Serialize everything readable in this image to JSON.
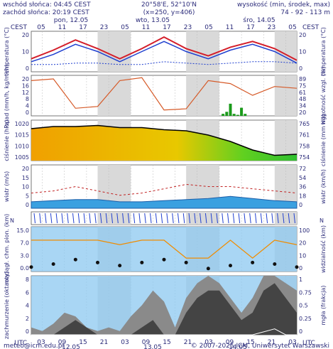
{
  "header": {
    "sunrise": "wschód słońca: 04:45 CEST",
    "sunset": "zachód słońca: 20:19 CEST",
    "coords": "20°58'E, 52°10'N",
    "grid": "(x=250,  y=406)",
    "elev_label": "wysokość (min, środek, max)",
    "elev_value": "74 - 92 - 113 m"
  },
  "timezone_label": "CEST",
  "bottom_timezone_label": "UTC",
  "top_days": [
    "pon, 12.05",
    "wto, 13.05",
    "śro, 14.05"
  ],
  "top_hours": [
    "05",
    "11",
    "17",
    "23",
    "05",
    "11",
    "17",
    "23",
    "05",
    "11",
    "17",
    "23",
    "05"
  ],
  "bottom_hours": [
    "03",
    "09",
    "15",
    "21",
    "03",
    "09",
    "15",
    "21",
    "03",
    "09",
    "15",
    "21",
    "03"
  ],
  "bottom_days": [
    "12.05",
    "13.05",
    "14.05"
  ],
  "footer": {
    "email": "meteo@icm.edu.pl",
    "copyright": "© 2007-2025 ICM, Uniwersytet Warszawski"
  },
  "colors": {
    "axis_text": "#2b2b7a",
    "night_band": "#d9d9d9",
    "temp_red": "#d41e2a",
    "temp_blue": "#1f3fcf",
    "humidity": "#d65a28",
    "precip": "#1a9a1a",
    "cloud_dark": "#444444",
    "sky_blue": "#8cc8f0",
    "visibility": "#f08c00"
  },
  "chart_data": [
    {
      "type": "line",
      "panel": "temperature",
      "ylabel_left": "temperatura (°C)",
      "ylabel_right": "temperatura (°C)",
      "yticks": [
        "20",
        "10",
        "0"
      ],
      "ylim": [
        -2,
        26
      ],
      "x_hours": [
        0,
        6,
        12,
        18,
        24,
        30,
        36,
        42,
        48,
        54,
        60,
        66,
        72
      ],
      "series": [
        {
          "values": [
            7,
            13,
            20,
            14,
            7,
            14,
            22,
            14,
            9,
            15,
            19,
            14,
            6
          ]
        },
        {
          "values": [
            5,
            10,
            17,
            12,
            5,
            12,
            19,
            12,
            7,
            13,
            17,
            12,
            4
          ]
        },
        {
          "values": [
            3,
            3,
            4,
            4,
            3,
            3,
            5,
            4,
            3,
            4,
            5,
            5,
            4
          ]
        }
      ]
    },
    {
      "type": "bar",
      "panel": "precipitation_humidity",
      "ylabel_left": "opad (mm/h, kg/m²/h)",
      "ylabel_right": "wilgotność wzgl. (%)",
      "yticks_left": [
        "20",
        "16",
        "12",
        "8",
        "4",
        "0"
      ],
      "yticks_right": [
        "89",
        "75",
        "61",
        "48",
        "34",
        "20"
      ],
      "ylim": [
        0,
        20
      ],
      "ylim_right": [
        20,
        89
      ],
      "humidity_x_hours": [
        0,
        6,
        12,
        18,
        24,
        30,
        36,
        42,
        48,
        54,
        60,
        66,
        72
      ],
      "humidity": [
        80,
        83,
        33,
        36,
        80,
        85,
        30,
        32,
        80,
        75,
        55,
        70,
        67
      ],
      "precip_x_hours": [
        52,
        53,
        54,
        55,
        56,
        57,
        58
      ],
      "precip": [
        1,
        2,
        6,
        1,
        0.5,
        4,
        1
      ]
    },
    {
      "type": "area",
      "panel": "pressure",
      "ylabel_left": "ciśnienie (hPa)",
      "ylabel_right": "ciśnienie (mm Hg)",
      "yticks_left": [
        "1020",
        "1015",
        "1010",
        "1005"
      ],
      "yticks_right": [
        "765",
        "761",
        "758",
        "754"
      ],
      "ylim": [
        1003,
        1022
      ],
      "x_hours": [
        0,
        6,
        12,
        18,
        24,
        30,
        36,
        42,
        48,
        54,
        60,
        66,
        72
      ],
      "values": [
        1018,
        1019,
        1019,
        1019.5,
        1018.5,
        1018.5,
        1017.5,
        1017,
        1015,
        1012,
        1008,
        1005.5,
        1006
      ]
    },
    {
      "type": "line",
      "panel": "wind",
      "ylabel_left": "wiatr (m/s)",
      "ylabel_right": "wiatr (km/h)",
      "yticks_left": [
        "20",
        "15",
        "10",
        "5",
        "0"
      ],
      "yticks_right": [
        "72",
        "54",
        "36",
        "18",
        "0"
      ],
      "ylim": [
        0,
        20
      ],
      "x_hours": [
        0,
        6,
        12,
        18,
        24,
        30,
        36,
        42,
        48,
        54,
        60,
        66,
        72
      ],
      "mean_speed": [
        3,
        3.5,
        4,
        4,
        3,
        3,
        3.5,
        4,
        4.5,
        5.5,
        4.5,
        3.5,
        3
      ],
      "gusts": [
        7,
        8,
        10,
        8,
        6,
        7,
        9,
        11,
        10,
        10,
        9,
        8,
        7
      ]
    },
    {
      "type": "scatter",
      "panel": "cloud_base_visibility",
      "ylabel_left": "rozciągł. chm. pion. (km)",
      "ylabel_right": "widzialność (km)",
      "yticks_left": [
        "15.0",
        "7.0",
        "3.0",
        "0.0"
      ],
      "yticks_right": [
        "100",
        "20",
        "10",
        "0"
      ],
      "x_hours": [
        0,
        6,
        12,
        18,
        24,
        30,
        36,
        42,
        48,
        54,
        60,
        66,
        72
      ],
      "visibility": [
        70,
        70,
        70,
        70,
        60,
        70,
        70,
        30,
        30,
        70,
        30,
        70,
        60
      ],
      "cloud_base": [
        1.5,
        2.5,
        4,
        3,
        2,
        3,
        4,
        3,
        1,
        2,
        3,
        2.5,
        1.5
      ]
    },
    {
      "type": "area",
      "panel": "cloud_cover_fog",
      "ylabel_left": "zachmurzenie (oktanty)",
      "ylabel_right": "mgła (frakcja)",
      "yticks_left": [
        "8",
        "6",
        "4",
        "2",
        "0"
      ],
      "yticks_right": [
        "1",
        "0.75",
        "0.5",
        "0.25",
        "0"
      ],
      "ylim": [
        0,
        8
      ],
      "x_hours": [
        0,
        3,
        6,
        9,
        12,
        15,
        18,
        21,
        24,
        27,
        30,
        33,
        36,
        39,
        42,
        45,
        48,
        51,
        54,
        57,
        60,
        63,
        66,
        69,
        72
      ],
      "cloud_total": [
        1,
        0.5,
        1.5,
        3,
        2.5,
        1,
        0.5,
        1,
        0.5,
        2.5,
        4,
        6,
        4.5,
        1,
        5,
        7,
        8,
        7,
        5,
        3,
        5,
        8,
        8,
        7,
        6
      ],
      "cloud_low": [
        0,
        0,
        0,
        1,
        2,
        1,
        0,
        0,
        0,
        0,
        1,
        2,
        0,
        0,
        3,
        5,
        6,
        6,
        4,
        2,
        3,
        6,
        7,
        5,
        3
      ],
      "fog": [
        0,
        0,
        0,
        0,
        0,
        0,
        0,
        0,
        0,
        0,
        0,
        0,
        0,
        0,
        0,
        0,
        0,
        0,
        0,
        0,
        0,
        0.05,
        0.1,
        0,
        0
      ]
    }
  ]
}
